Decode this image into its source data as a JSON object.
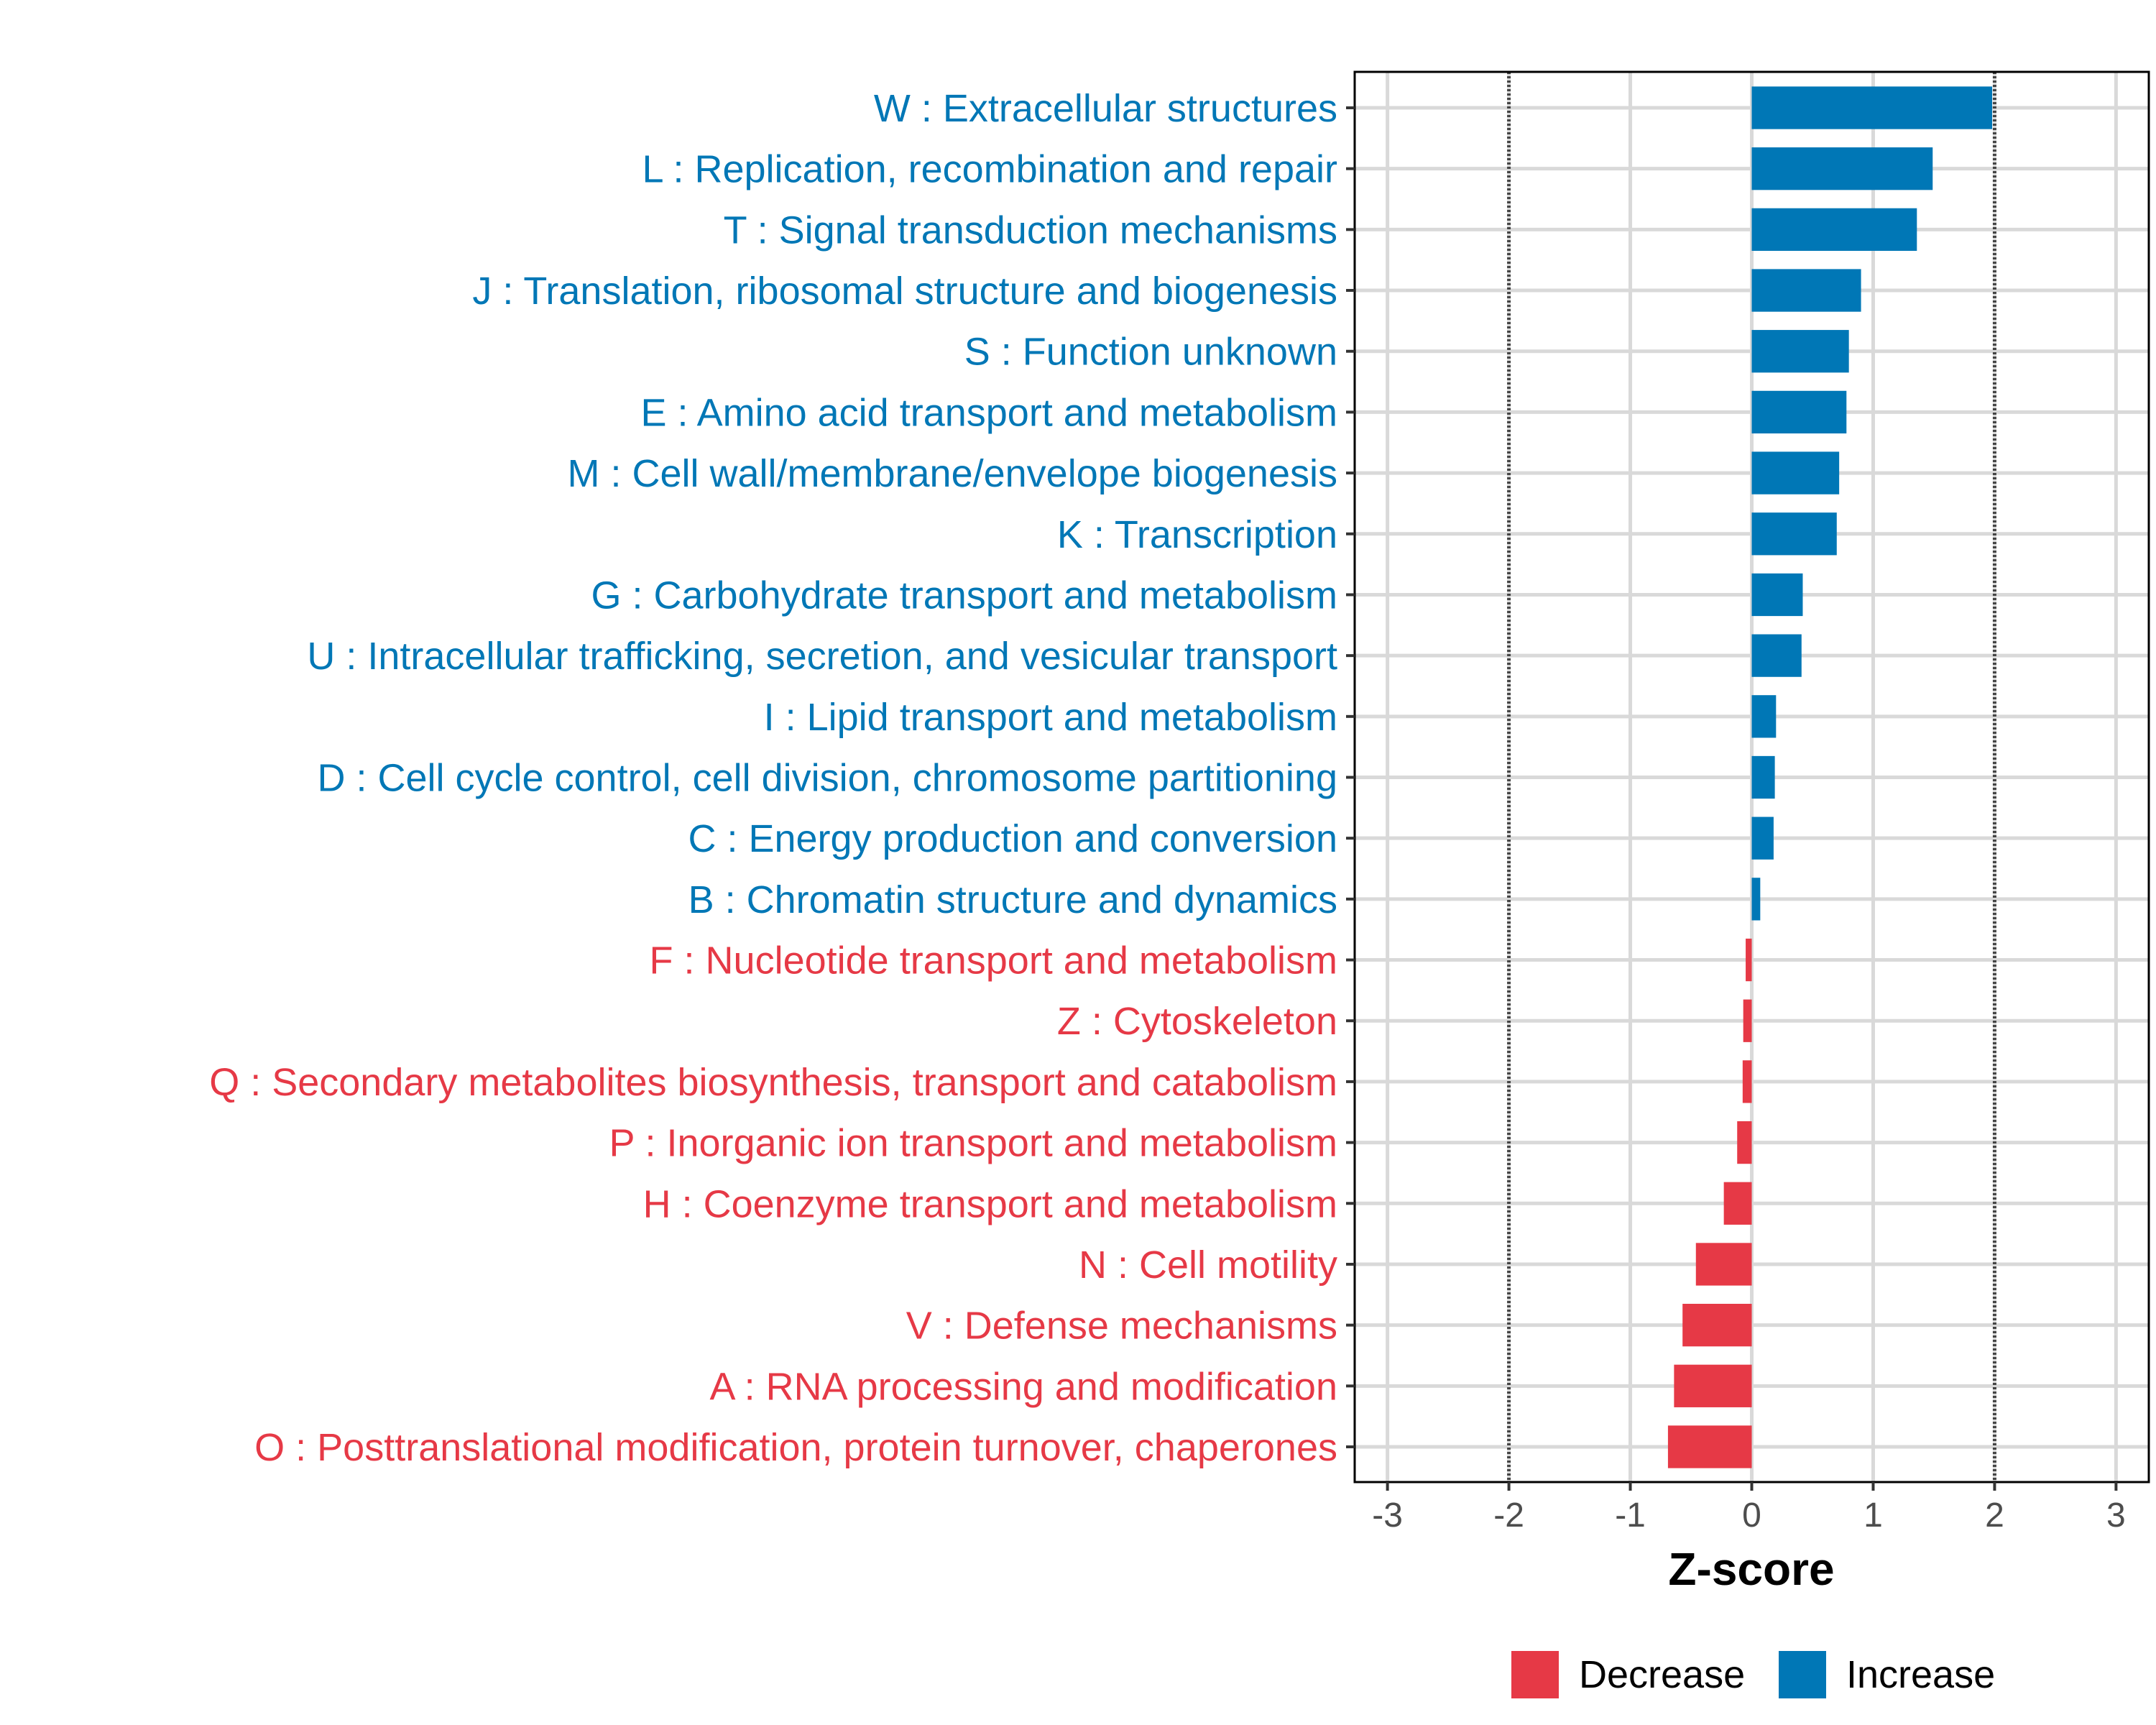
{
  "chart_data": {
    "type": "bar",
    "orientation": "horizontal",
    "title": "",
    "xlabel": "Z-score",
    "ylabel": "",
    "xlim": [
      -3.27,
      3.27
    ],
    "xticks": [
      -3,
      -2,
      -1,
      0,
      1,
      2,
      3
    ],
    "reference_lines": [
      -2,
      2
    ],
    "grid": true,
    "colors": {
      "Decrease": "#e63946",
      "Increase": "#0077b6"
    },
    "legend": {
      "position": "bottom",
      "entries": [
        "Decrease",
        "Increase"
      ]
    },
    "categories": [
      "W : Extracellular structures",
      "L : Replication, recombination and repair",
      "T : Signal transduction mechanisms",
      "J : Translation, ribosomal structure and biogenesis",
      "S : Function unknown",
      "E : Amino acid transport and metabolism",
      "M : Cell wall/membrane/envelope biogenesis",
      "K : Transcription",
      "G : Carbohydrate transport and metabolism",
      "U : Intracellular trafficking, secretion, and vesicular transport",
      "I : Lipid transport and metabolism",
      "D : Cell cycle control, cell division, chromosome partitioning",
      "C : Energy production and conversion",
      "B : Chromatin structure and dynamics",
      "F : Nucleotide transport and metabolism",
      "Z : Cytoskeleton",
      "Q : Secondary metabolites biosynthesis, transport and catabolism",
      "P : Inorganic ion transport and metabolism",
      "H : Coenzyme transport and metabolism",
      "N : Cell motility",
      "V : Defense mechanisms",
      "A : RNA processing and modification",
      "O : Posttranslational modification, protein turnover, chaperones"
    ],
    "values": [
      1.98,
      1.49,
      1.36,
      0.9,
      0.8,
      0.78,
      0.72,
      0.7,
      0.42,
      0.41,
      0.2,
      0.19,
      0.18,
      0.07,
      -0.05,
      -0.07,
      -0.075,
      -0.12,
      -0.23,
      -0.46,
      -0.57,
      -0.64,
      -0.69
    ]
  }
}
